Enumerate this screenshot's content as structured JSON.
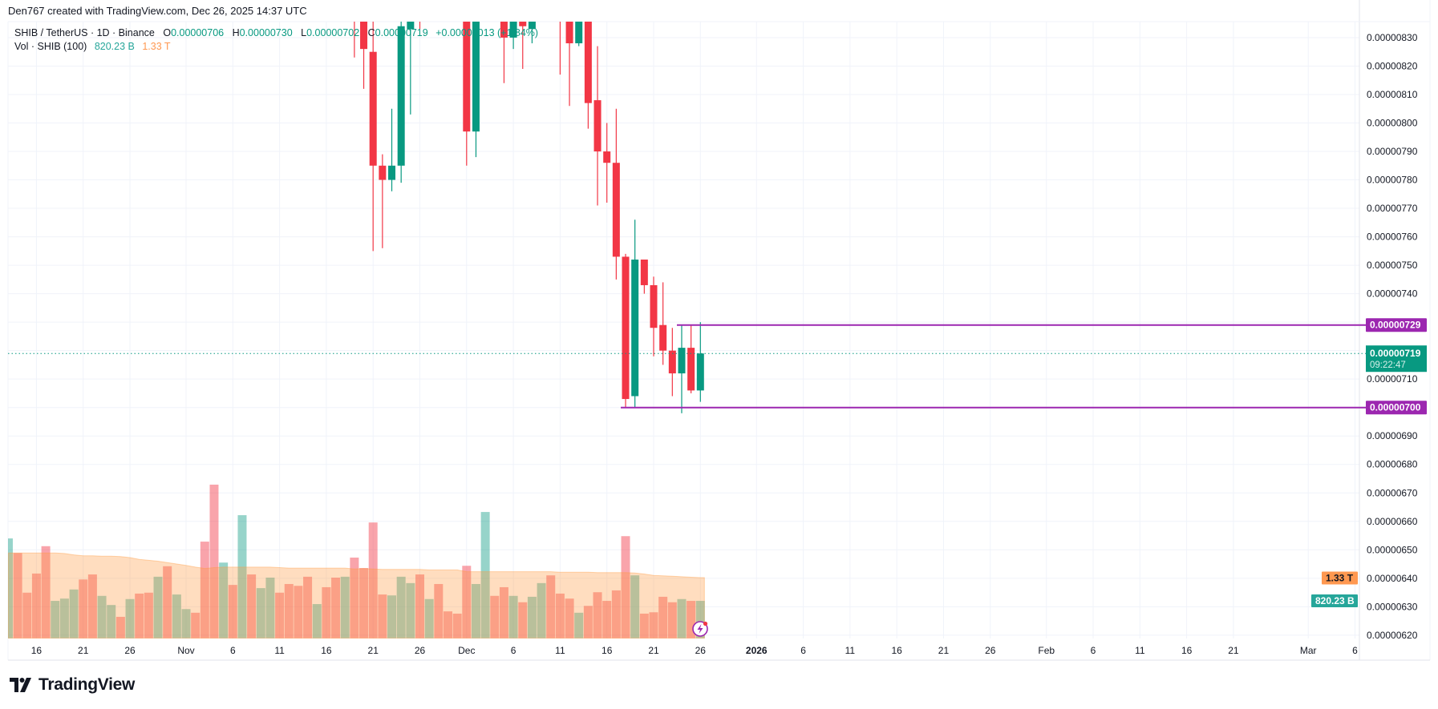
{
  "header": {
    "credit": "Den767 created with TradingView.com, Dec 26, 2025 14:37 UTC"
  },
  "legend": {
    "symbol": "SHIB / TetherUS · 1D · Binance",
    "o_label": "O",
    "o": "0.00000706",
    "h_label": "H",
    "h": "0.00000730",
    "l_label": "L",
    "l": "0.00000702",
    "c_label": "C",
    "c": "0.00000719",
    "change": "+0.00000013 (+1.84%)",
    "vol_label": "Vol · SHIB (100)",
    "vol_value": "820.23 B",
    "vol_ma": "1.33 T"
  },
  "footer": {
    "brand": "TradingView",
    "logo_icon": "tradingview-logo-icon"
  },
  "colors": {
    "up": "#089981",
    "down": "#F23645",
    "hline": "#9C27B0",
    "vol_up_badge": "#26A69A",
    "vol_ma_badge": "#FF9850"
  },
  "chart_data": {
    "type": "candlestick",
    "symbol": "SHIB / TetherUS",
    "interval": "1D",
    "exchange": "Binance",
    "grid": true,
    "y_range": [
      6.15e-06,
      8.355e-06
    ],
    "price_axis": {
      "labels": [
        "0.00000830",
        "0.00000820",
        "0.00000810",
        "0.00000800",
        "0.00000790",
        "0.00000780",
        "0.00000770",
        "0.00000760",
        "0.00000750",
        "0.00000740",
        "0.00000710",
        "0.00000690",
        "0.00000680",
        "0.00000670",
        "0.00000660",
        "0.00000650",
        "0.00000640",
        "0.00000630",
        "0.00000620"
      ]
    },
    "time_axis": {
      "ticks": [
        {
          "label": "16",
          "date": "2025-10-16"
        },
        {
          "label": "21",
          "date": "2025-10-21"
        },
        {
          "label": "26",
          "date": "2025-10-26"
        },
        {
          "label": "Nov",
          "date": "2025-11-01"
        },
        {
          "label": "6",
          "date": "2025-11-06"
        },
        {
          "label": "11",
          "date": "2025-11-11"
        },
        {
          "label": "16",
          "date": "2025-11-16"
        },
        {
          "label": "21",
          "date": "2025-11-21"
        },
        {
          "label": "26",
          "date": "2025-11-26"
        },
        {
          "label": "Dec",
          "date": "2025-12-01"
        },
        {
          "label": "6",
          "date": "2025-12-06"
        },
        {
          "label": "11",
          "date": "2025-12-11"
        },
        {
          "label": "16",
          "date": "2025-12-16"
        },
        {
          "label": "21",
          "date": "2025-12-21"
        },
        {
          "label": "26",
          "date": "2025-12-26"
        },
        {
          "label": "2026",
          "date": "2026-01-01"
        },
        {
          "label": "6",
          "date": "2026-01-06"
        },
        {
          "label": "11",
          "date": "2026-01-11"
        },
        {
          "label": "16",
          "date": "2026-01-16"
        },
        {
          "label": "21",
          "date": "2026-01-21"
        },
        {
          "label": "26",
          "date": "2026-01-26"
        },
        {
          "label": "Feb",
          "date": "2026-02-01"
        },
        {
          "label": "6",
          "date": "2026-02-06"
        },
        {
          "label": "11",
          "date": "2026-02-11"
        },
        {
          "label": "16",
          "date": "2026-02-16"
        },
        {
          "label": "21",
          "date": "2026-02-21"
        },
        {
          "label": "Mar",
          "date": "2026-03-01"
        },
        {
          "label": "6",
          "date": "2026-03-06"
        }
      ]
    },
    "badges": {
      "resistance": "0.00000729",
      "last_price": "0.00000719",
      "countdown": "09:22:47",
      "support": "0.00000700",
      "vol_ma": "1.33 T",
      "vol_last": "820.23 B"
    },
    "horizontal_lines": [
      {
        "price": 7.29e-06,
        "from": "2025-12-24"
      },
      {
        "price": 7e-06,
        "from": "2025-12-18"
      }
    ],
    "last_price": 7.19e-06,
    "candles": [
      {
        "date": "2025-11-19",
        "o": 8.5e-06,
        "h": 8.6e-06,
        "l": 8.23e-06,
        "c": 8.4e-06
      },
      {
        "date": "2025-11-20",
        "o": 8.4e-06,
        "h": 8.48e-06,
        "l": 8.12e-06,
        "c": 8.26e-06
      },
      {
        "date": "2025-11-21",
        "o": 8.25e-06,
        "h": 8.4e-06,
        "l": 7.55e-06,
        "c": 7.85e-06
      },
      {
        "date": "2025-11-22",
        "o": 7.85e-06,
        "h": 7.89e-06,
        "l": 7.56e-06,
        "c": 7.8e-06
      },
      {
        "date": "2025-11-23",
        "o": 7.8e-06,
        "h": 8.05e-06,
        "l": 7.76e-06,
        "c": 7.85e-06
      },
      {
        "date": "2025-11-24",
        "o": 7.85e-06,
        "h": 8.45e-06,
        "l": 7.79e-06,
        "c": 8.34e-06
      },
      {
        "date": "2025-11-25",
        "o": 8.33e-06,
        "h": 8.5e-06,
        "l": 8.03e-06,
        "c": 8.45e-06
      },
      {
        "date": "2025-11-26",
        "o": 8.55e-06,
        "h": 8.65e-06,
        "l": 8.33e-06,
        "c": 8.4e-06
      },
      {
        "date": "2025-12-01",
        "o": 8.5e-06,
        "h": 8.6e-06,
        "l": 7.85e-06,
        "c": 7.97e-06
      },
      {
        "date": "2025-12-02",
        "o": 7.97e-06,
        "h": 8.55e-06,
        "l": 7.88e-06,
        "c": 8.45e-06
      },
      {
        "date": "2025-12-05",
        "o": 8.4e-06,
        "h": 8.5e-06,
        "l": 8.14e-06,
        "c": 8.3e-06
      },
      {
        "date": "2025-12-06",
        "o": 8.3e-06,
        "h": 8.45e-06,
        "l": 8.26e-06,
        "c": 8.38e-06
      },
      {
        "date": "2025-12-07",
        "o": 8.38e-06,
        "h": 8.42e-06,
        "l": 8.19e-06,
        "c": 8.34e-06
      },
      {
        "date": "2025-12-08",
        "o": 8.33e-06,
        "h": 8.4e-06,
        "l": 8.28e-06,
        "c": 8.36e-06
      },
      {
        "date": "2025-12-11",
        "o": 8.65e-06,
        "h": 8.7e-06,
        "l": 8.17e-06,
        "c": 8.5e-06
      },
      {
        "date": "2025-12-12",
        "o": 8.5e-06,
        "h": 8.55e-06,
        "l": 8.06e-06,
        "c": 8.28e-06
      },
      {
        "date": "2025-12-13",
        "o": 8.28e-06,
        "h": 8.45e-06,
        "l": 8.27e-06,
        "c": 8.4e-06
      },
      {
        "date": "2025-12-14",
        "o": 8.4e-06,
        "h": 8.45e-06,
        "l": 7.98e-06,
        "c": 8.07e-06
      },
      {
        "date": "2025-12-15",
        "o": 8.08e-06,
        "h": 8.27e-06,
        "l": 7.71e-06,
        "c": 7.9e-06
      },
      {
        "date": "2025-12-16",
        "o": 7.9e-06,
        "h": 8e-06,
        "l": 7.72e-06,
        "c": 7.86e-06
      },
      {
        "date": "2025-12-17",
        "o": 7.86e-06,
        "h": 8.05e-06,
        "l": 7.45e-06,
        "c": 7.53e-06
      },
      {
        "date": "2025-12-18",
        "o": 7.53e-06,
        "h": 7.54e-06,
        "l": 7e-06,
        "c": 7.03e-06
      },
      {
        "date": "2025-12-19",
        "o": 7.04e-06,
        "h": 7.66e-06,
        "l": 7e-06,
        "c": 7.52e-06
      },
      {
        "date": "2025-12-20",
        "o": 7.52e-06,
        "h": 7.52e-06,
        "l": 7.4e-06,
        "c": 7.43e-06
      },
      {
        "date": "2025-12-21",
        "o": 7.43e-06,
        "h": 7.46e-06,
        "l": 7.18e-06,
        "c": 7.28e-06
      },
      {
        "date": "2025-12-22",
        "o": 7.29e-06,
        "h": 7.44e-06,
        "l": 7.15e-06,
        "c": 7.2e-06
      },
      {
        "date": "2025-12-23",
        "o": 7.2e-06,
        "h": 7.28e-06,
        "l": 7.04e-06,
        "c": 7.12e-06
      },
      {
        "date": "2025-12-24",
        "o": 7.12e-06,
        "h": 7.29e-06,
        "l": 6.98e-06,
        "c": 7.21e-06
      },
      {
        "date": "2025-12-25",
        "o": 7.21e-06,
        "h": 7.29e-06,
        "l": 7.05e-06,
        "c": 7.06e-06
      },
      {
        "date": "2025-12-26",
        "o": 7.06e-06,
        "h": 7.3e-06,
        "l": 7.02e-06,
        "c": 7.19e-06
      }
    ],
    "volume_unit": "T",
    "volume_range": [
      0,
      3.5
    ],
    "volume": [
      [
        "2025-10-13",
        2.19,
        "up"
      ],
      [
        "2025-10-14",
        1.87,
        "down"
      ],
      [
        "2025-10-15",
        1.0,
        "down"
      ],
      [
        "2025-10-16",
        1.42,
        "down"
      ],
      [
        "2025-10-17",
        2.02,
        "down"
      ],
      [
        "2025-10-18",
        0.82,
        "up"
      ],
      [
        "2025-10-19",
        0.87,
        "up"
      ],
      [
        "2025-10-20",
        1.07,
        "up"
      ],
      [
        "2025-10-21",
        1.29,
        "down"
      ],
      [
        "2025-10-22",
        1.4,
        "down"
      ],
      [
        "2025-10-23",
        0.93,
        "up"
      ],
      [
        "2025-10-24",
        0.73,
        "up"
      ],
      [
        "2025-10-25",
        0.47,
        "down"
      ],
      [
        "2025-10-26",
        0.86,
        "up"
      ],
      [
        "2025-10-27",
        0.98,
        "down"
      ],
      [
        "2025-10-28",
        1.0,
        "down"
      ],
      [
        "2025-10-29",
        1.35,
        "up"
      ],
      [
        "2025-10-30",
        1.58,
        "down"
      ],
      [
        "2025-10-31",
        0.96,
        "up"
      ],
      [
        "2025-11-01",
        0.64,
        "up"
      ],
      [
        "2025-11-02",
        0.56,
        "down"
      ],
      [
        "2025-11-03",
        2.12,
        "down"
      ],
      [
        "2025-11-04",
        3.37,
        "down"
      ],
      [
        "2025-11-05",
        1.66,
        "up"
      ],
      [
        "2025-11-06",
        1.17,
        "down"
      ],
      [
        "2025-11-07",
        2.7,
        "up"
      ],
      [
        "2025-11-08",
        1.4,
        "down"
      ],
      [
        "2025-11-09",
        1.1,
        "up"
      ],
      [
        "2025-11-10",
        1.33,
        "up"
      ],
      [
        "2025-11-11",
        1.0,
        "down"
      ],
      [
        "2025-11-12",
        1.19,
        "down"
      ],
      [
        "2025-11-13",
        1.15,
        "down"
      ],
      [
        "2025-11-14",
        1.35,
        "down"
      ],
      [
        "2025-11-15",
        0.75,
        "up"
      ],
      [
        "2025-11-16",
        1.12,
        "down"
      ],
      [
        "2025-11-17",
        1.33,
        "down"
      ],
      [
        "2025-11-18",
        1.35,
        "up"
      ],
      [
        "2025-11-19",
        1.77,
        "down"
      ],
      [
        "2025-11-20",
        1.54,
        "down"
      ],
      [
        "2025-11-21",
        2.54,
        "down"
      ],
      [
        "2025-11-22",
        0.96,
        "down"
      ],
      [
        "2025-11-23",
        0.94,
        "up"
      ],
      [
        "2025-11-24",
        1.35,
        "up"
      ],
      [
        "2025-11-25",
        1.21,
        "up"
      ],
      [
        "2025-11-26",
        1.4,
        "down"
      ],
      [
        "2025-11-27",
        0.86,
        "up"
      ],
      [
        "2025-11-28",
        1.19,
        "down"
      ],
      [
        "2025-11-29",
        0.59,
        "down"
      ],
      [
        "2025-11-30",
        0.54,
        "down"
      ],
      [
        "2025-12-01",
        1.59,
        "down"
      ],
      [
        "2025-12-02",
        1.19,
        "up"
      ],
      [
        "2025-12-03",
        2.77,
        "up"
      ],
      [
        "2025-12-04",
        0.93,
        "down"
      ],
      [
        "2025-12-05",
        1.12,
        "down"
      ],
      [
        "2025-12-06",
        0.93,
        "up"
      ],
      [
        "2025-12-07",
        0.79,
        "down"
      ],
      [
        "2025-12-08",
        0.91,
        "up"
      ],
      [
        "2025-12-09",
        1.21,
        "up"
      ],
      [
        "2025-12-10",
        1.38,
        "down"
      ],
      [
        "2025-12-11",
        0.98,
        "down"
      ],
      [
        "2025-12-12",
        0.87,
        "down"
      ],
      [
        "2025-12-13",
        0.56,
        "up"
      ],
      [
        "2025-12-14",
        0.71,
        "down"
      ],
      [
        "2025-12-15",
        1.01,
        "down"
      ],
      [
        "2025-12-16",
        0.82,
        "down"
      ],
      [
        "2025-12-17",
        1.05,
        "down"
      ],
      [
        "2025-12-18",
        2.24,
        "down"
      ],
      [
        "2025-12-19",
        1.38,
        "up"
      ],
      [
        "2025-12-20",
        0.54,
        "down"
      ],
      [
        "2025-12-21",
        0.57,
        "down"
      ],
      [
        "2025-12-22",
        0.91,
        "down"
      ],
      [
        "2025-12-23",
        0.79,
        "down"
      ],
      [
        "2025-12-24",
        0.86,
        "up"
      ],
      [
        "2025-12-25",
        0.82,
        "down"
      ],
      [
        "2025-12-26",
        0.82023,
        "up"
      ]
    ],
    "volume_ma_period": 100,
    "volume_ma": [
      1.87,
      1.87,
      1.87,
      1.87,
      1.87,
      1.87,
      1.86,
      1.83,
      1.81,
      1.81,
      1.8,
      1.8,
      1.79,
      1.77,
      1.73,
      1.71,
      1.69,
      1.66,
      1.63,
      1.6,
      1.56,
      1.53,
      1.55,
      1.56,
      1.56,
      1.56,
      1.56,
      1.56,
      1.56,
      1.55,
      1.54,
      1.54,
      1.54,
      1.54,
      1.54,
      1.54,
      1.54,
      1.52,
      1.53,
      1.52,
      1.51,
      1.51,
      1.51,
      1.51,
      1.51,
      1.5,
      1.5,
      1.5,
      1.5,
      1.46,
      1.46,
      1.46,
      1.46,
      1.46,
      1.46,
      1.46,
      1.46,
      1.46,
      1.46,
      1.45,
      1.45,
      1.45,
      1.45,
      1.44,
      1.44,
      1.44,
      1.44,
      1.43,
      1.41,
      1.38,
      1.37,
      1.36,
      1.35,
      1.34,
      1.33
    ]
  }
}
